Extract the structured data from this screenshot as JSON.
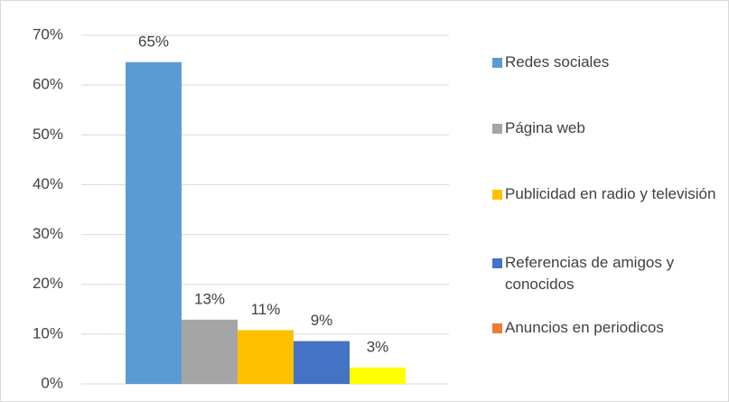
{
  "chart_data": {
    "type": "bar",
    "categories": [
      null
    ],
    "series": [
      {
        "name": "Redes sociales",
        "color": "#5b9bd5",
        "values": [
          64.6
        ],
        "value_labels": [
          "65%"
        ]
      },
      {
        "name": "Página web",
        "color": "#a5a5a5",
        "values": [
          12.9
        ],
        "value_labels": [
          "13%"
        ]
      },
      {
        "name": "Publicidad en radio y televisión",
        "color": "#ffc000",
        "values": [
          10.8
        ],
        "value_labels": [
          "11%"
        ]
      },
      {
        "name": "Referencias de amigos y conocidos",
        "color": "#4472c4",
        "values": [
          8.6
        ],
        "value_labels": [
          "9%"
        ]
      },
      {
        "name": "Anuncios en periodicos",
        "color": "#ffff00",
        "legend_color": "#ed7d31",
        "values": [
          3.3
        ],
        "value_labels": [
          "3%"
        ]
      }
    ],
    "ylim": [
      0,
      70
    ],
    "yticks": [
      {
        "value": 0,
        "label": "0%"
      },
      {
        "value": 10,
        "label": "10%"
      },
      {
        "value": 20,
        "label": "20%"
      },
      {
        "value": 30,
        "label": "30%"
      },
      {
        "value": 40,
        "label": "40%"
      },
      {
        "value": 50,
        "label": "50%"
      },
      {
        "value": 60,
        "label": "60%"
      },
      {
        "value": 70,
        "label": "70%"
      }
    ],
    "grid": true,
    "legend": "right"
  }
}
